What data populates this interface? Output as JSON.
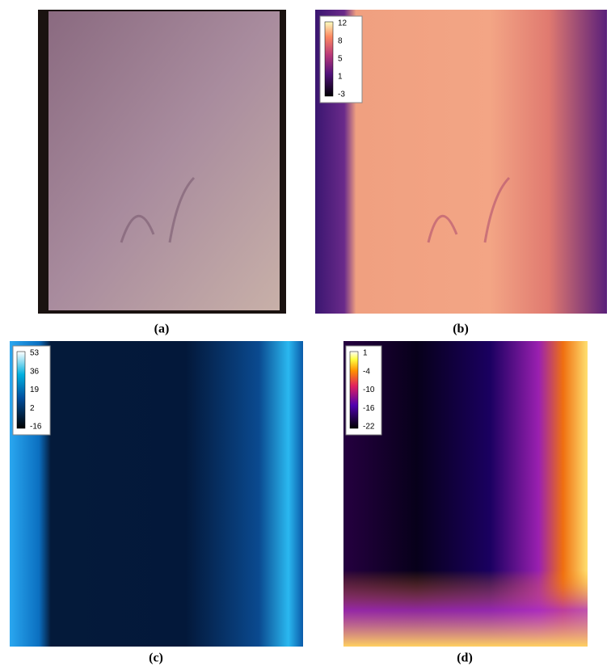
{
  "panels": [
    {
      "label": "(a)"
    },
    {
      "label": "(b)",
      "colorbar": {
        "ticks": [
          12,
          8,
          5,
          1,
          -3
        ]
      }
    },
    {
      "label": "(c)",
      "colorbar": {
        "ticks": [
          53,
          36,
          19,
          2,
          -16
        ]
      }
    },
    {
      "label": "(d)",
      "colorbar": {
        "ticks": [
          1,
          -4,
          -10,
          -16,
          -22
        ]
      }
    }
  ]
}
